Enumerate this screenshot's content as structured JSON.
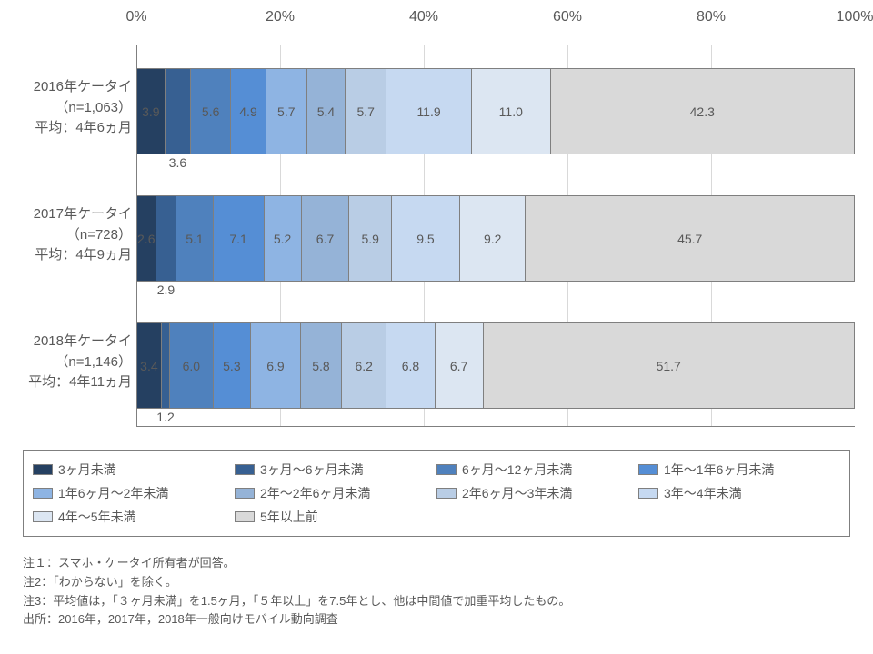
{
  "chart": {
    "type": "stacked-bar-horizontal",
    "xlim": [
      0,
      100
    ],
    "xticks": [
      0,
      20,
      40,
      60,
      80,
      100
    ],
    "xtick_suffix": "%",
    "grid_color": "#d9d9d9",
    "border_color": "#7f7f7f",
    "background_color": "#ffffff",
    "text_color": "#595959",
    "label_fontsize": 15,
    "value_fontsize": 14,
    "colors": [
      "#254061",
      "#376092",
      "#4f81bd",
      "#558ed5",
      "#8eb4e3",
      "#95b3d7",
      "#b9cde5",
      "#c6d9f1",
      "#dce6f2",
      "#d9d9d9"
    ],
    "categories": [
      "3ヶ月未満",
      "3ヶ月～6ヶ月未満",
      "6ヶ月～12ヶ月未満",
      "1年～1年6ヶ月未満",
      "1年6ヶ月～2年未満",
      "2年～2年6ヶ月未満",
      "2年6ヶ月～3年未満",
      "3年～4年未満",
      "4年～5年未満",
      "5年以上前"
    ],
    "rows": [
      {
        "label_line1": "2016年ケータイ",
        "label_line2": "（n=1,063）",
        "label_line3": "平均：4年6ヵ月",
        "values": [
          3.9,
          3.6,
          5.6,
          4.9,
          5.7,
          5.4,
          5.7,
          11.9,
          11.0,
          42.3
        ],
        "below_idx": [
          1
        ]
      },
      {
        "label_line1": "2017年ケータイ",
        "label_line2": "（n=728）",
        "label_line3": "平均：4年9ヵ月",
        "values": [
          2.6,
          2.9,
          5.1,
          7.1,
          5.2,
          6.7,
          5.9,
          9.5,
          9.2,
          45.7
        ],
        "below_idx": [
          1
        ]
      },
      {
        "label_line1": "2018年ケータイ",
        "label_line2": "（n=1,146）",
        "label_line3": "平均：4年11ヵ月",
        "values": [
          3.4,
          1.2,
          6.0,
          5.3,
          6.9,
          5.8,
          6.2,
          6.8,
          6.7,
          51.7
        ],
        "below_idx": [
          1
        ]
      }
    ]
  },
  "footnotes": {
    "note1": "注１：スマホ・ケータイ所有者が回答。",
    "note2": "注2：「わからない」を除く。",
    "note3": "注3：平均値は，「３ヶ月未満」を1.5ヶ月，「５年以上」を7.5年とし、他は中間値で加重平均したもの。",
    "source": "出所：2016年，2017年，2018年一般向けモバイル動向調査"
  }
}
